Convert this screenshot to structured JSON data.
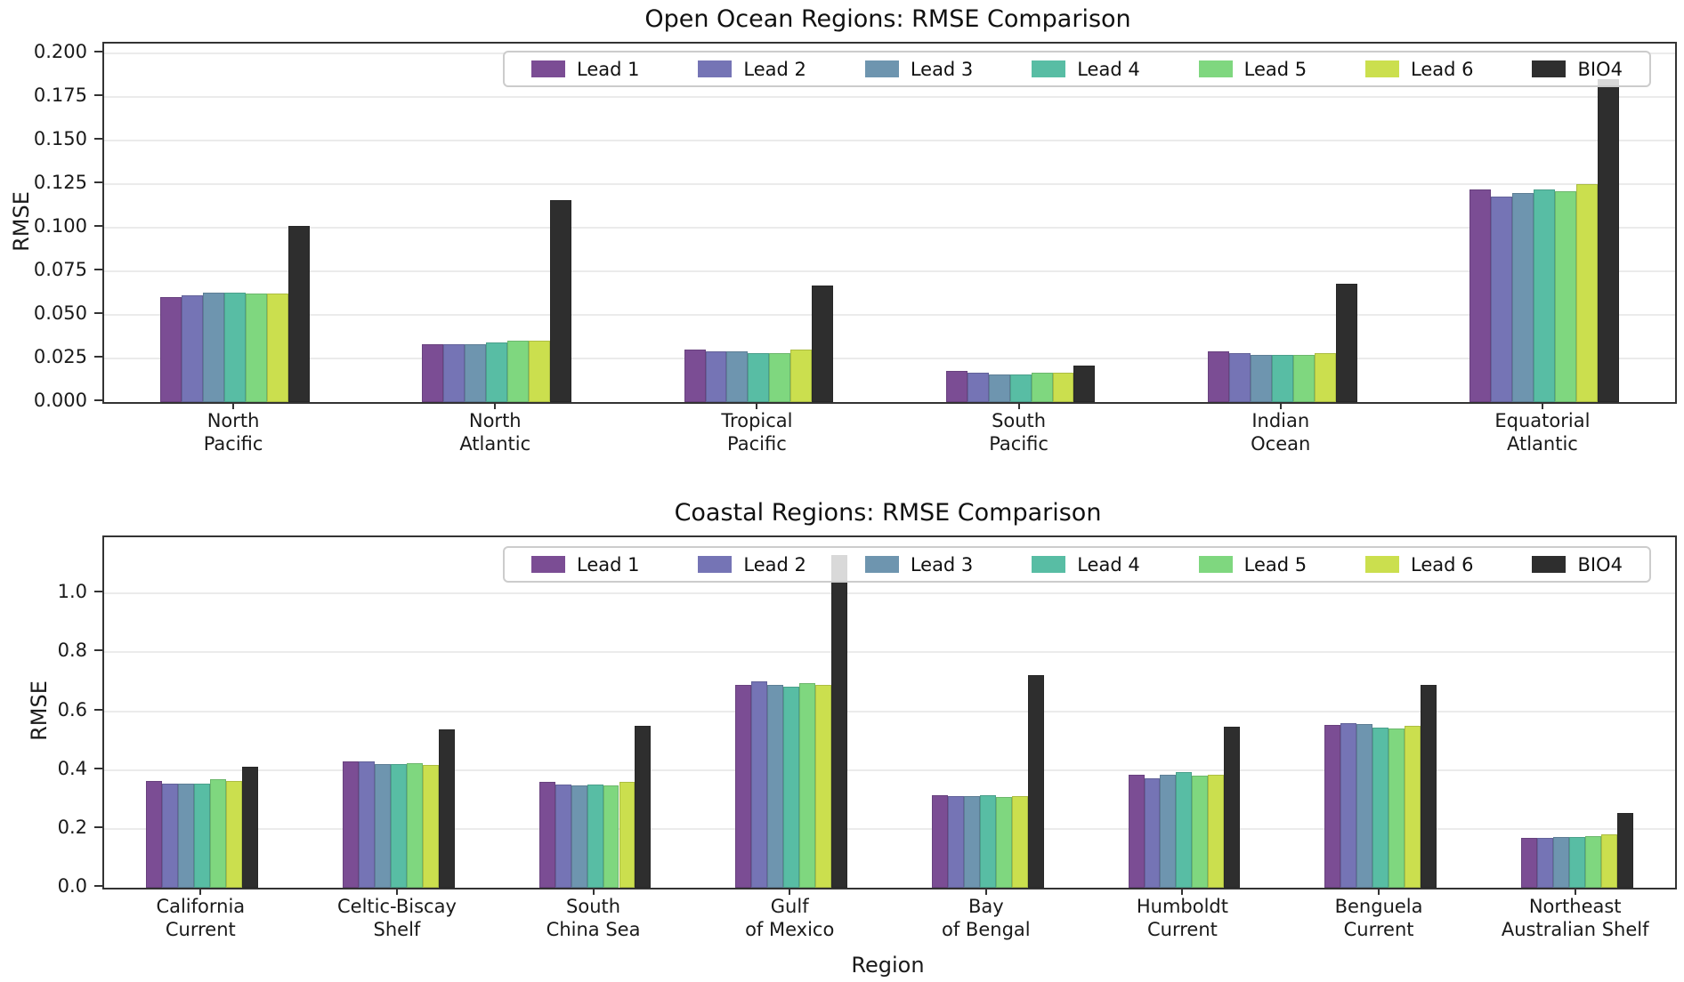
{
  "figure": {
    "background": "#ffffff",
    "text_color": "#111111",
    "grid_color": "#ebebeb",
    "spine_color": "#333333"
  },
  "chart_data": [
    {
      "type": "bar",
      "title": "Open Ocean Regions: RMSE Comparison",
      "xlabel": "",
      "ylabel": "RMSE",
      "grid": true,
      "legend_position": "upper right inside, horizontal",
      "ylim": [
        0,
        0.2056
      ],
      "yticks": [
        0.0,
        0.025,
        0.05,
        0.075,
        0.1,
        0.125,
        0.15,
        0.175,
        0.2
      ],
      "ytick_labels": [
        "0.000",
        "0.025",
        "0.050",
        "0.075",
        "0.100",
        "0.125",
        "0.150",
        "0.175",
        "0.200"
      ],
      "categories": [
        "North\nPacific",
        "North\nAtlantic",
        "Tropical\nPacific",
        "South\nPacific",
        "Indian\nOcean",
        "Equatorial\nAtlantic"
      ],
      "series": [
        {
          "name": "Lead 1",
          "color": "#7b4d94",
          "values": [
            0.06,
            0.033,
            0.03,
            0.018,
            0.029,
            0.122
          ]
        },
        {
          "name": "Lead 2",
          "color": "#7574b5",
          "values": [
            0.061,
            0.033,
            0.029,
            0.017,
            0.028,
            0.118
          ]
        },
        {
          "name": "Lead 3",
          "color": "#6e95af",
          "values": [
            0.063,
            0.033,
            0.029,
            0.016,
            0.027,
            0.12
          ]
        },
        {
          "name": "Lead 4",
          "color": "#58bda4",
          "values": [
            0.063,
            0.034,
            0.028,
            0.016,
            0.027,
            0.122
          ]
        },
        {
          "name": "Lead 5",
          "color": "#7fd77f",
          "values": [
            0.062,
            0.035,
            0.028,
            0.017,
            0.027,
            0.121
          ]
        },
        {
          "name": "Lead 6",
          "color": "#cbdf4e",
          "values": [
            0.062,
            0.035,
            0.03,
            0.017,
            0.028,
            0.125
          ]
        },
        {
          "name": "BIO4",
          "color": "#2e2e2e",
          "values": [
            0.101,
            0.116,
            0.067,
            0.021,
            0.068,
            0.185
          ]
        }
      ]
    },
    {
      "type": "bar",
      "title": "Coastal Regions: RMSE Comparison",
      "xlabel": "Region",
      "ylabel": "RMSE",
      "grid": true,
      "legend_position": "upper right inside, horizontal",
      "ylim": [
        0,
        1.191
      ],
      "yticks": [
        0.0,
        0.2,
        0.4,
        0.6,
        0.8,
        1.0
      ],
      "ytick_labels": [
        "0.0",
        "0.2",
        "0.4",
        "0.6",
        "0.8",
        "1.0"
      ],
      "categories": [
        "California\nCurrent",
        "Celtic-Biscay\nShelf",
        "South\nChina Sea",
        "Gulf\nof Mexico",
        "Bay\nof Bengal",
        "Humboldt\nCurrent",
        "Benguela\nCurrent",
        "Northeast\nAustralian Shelf"
      ],
      "series": [
        {
          "name": "Lead 1",
          "color": "#7b4d94",
          "values": [
            0.363,
            0.428,
            0.36,
            0.69,
            0.315,
            0.385,
            0.552,
            0.17
          ]
        },
        {
          "name": "Lead 2",
          "color": "#7574b5",
          "values": [
            0.353,
            0.428,
            0.352,
            0.7,
            0.31,
            0.373,
            0.56,
            0.168
          ]
        },
        {
          "name": "Lead 3",
          "color": "#6e95af",
          "values": [
            0.354,
            0.421,
            0.348,
            0.69,
            0.31,
            0.384,
            0.556,
            0.172
          ]
        },
        {
          "name": "Lead 4",
          "color": "#58bda4",
          "values": [
            0.354,
            0.419,
            0.351,
            0.684,
            0.314,
            0.392,
            0.545,
            0.171
          ]
        },
        {
          "name": "Lead 5",
          "color": "#7fd77f",
          "values": [
            0.369,
            0.422,
            0.349,
            0.696,
            0.309,
            0.38,
            0.54,
            0.176
          ]
        },
        {
          "name": "Lead 6",
          "color": "#cbdf4e",
          "values": [
            0.363,
            0.416,
            0.359,
            0.69,
            0.311,
            0.384,
            0.551,
            0.181
          ]
        },
        {
          "name": "BIO4",
          "color": "#2e2e2e",
          "values": [
            0.411,
            0.539,
            0.549,
            1.13,
            0.723,
            0.547,
            0.688,
            0.253
          ]
        }
      ]
    }
  ]
}
